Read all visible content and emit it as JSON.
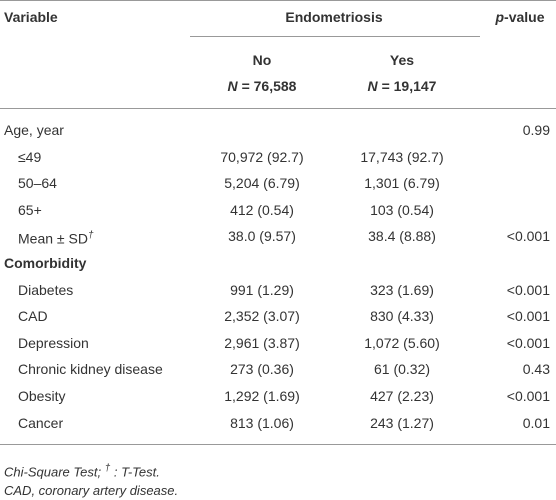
{
  "header": {
    "variable": "Variable",
    "group": "Endometriosis",
    "p_value": {
      "symbol": "p",
      "rest": "-value"
    },
    "no": {
      "label": "No",
      "n_symbol": "N",
      "n_rest": "= 76,588"
    },
    "yes": {
      "label": "Yes",
      "n_symbol": "N",
      "n_rest": "= 19,147"
    }
  },
  "sections": [
    {
      "title": "Age, year",
      "p": "0.99",
      "rows": [
        {
          "label": "≤49",
          "no": "70,972 (92.7)",
          "yes": "17,743 (92.7)"
        },
        {
          "label": "50–64",
          "no": "5,204 (6.79)",
          "yes": "1,301 (6.79)"
        },
        {
          "label": "65+",
          "no": "412 (0.54)",
          "yes": "103 (0.54)"
        },
        {
          "label": "Mean ± SD",
          "sup": "†",
          "no": "38.0 (9.57)",
          "yes": "38.4 (8.88)",
          "p": "<0.001"
        }
      ]
    },
    {
      "title": "Comorbidity",
      "rows": [
        {
          "label": "Diabetes",
          "no": "991 (1.29)",
          "yes": "323 (1.69)",
          "p": "<0.001"
        },
        {
          "label": "CAD",
          "no": "2,352 (3.07)",
          "yes": "830 (4.33)",
          "p": "<0.001"
        },
        {
          "label": "Depression",
          "no": "2,961 (3.87)",
          "yes": "1,072 (5.60)",
          "p": "<0.001"
        },
        {
          "label": "Chronic kidney disease",
          "no": "273 (0.36)",
          "yes": "61 (0.32)",
          "p": "0.43"
        },
        {
          "label": "Obesity",
          "no": "1,292 (1.69)",
          "yes": "427 (2.23)",
          "p": "<0.001"
        },
        {
          "label": "Cancer",
          "no": "813 (1.06)",
          "yes": "243 (1.27)",
          "p": "0.01"
        }
      ]
    }
  ],
  "footnotes": {
    "line1": {
      "a": "Chi-Square Test; ",
      "dagger": "†",
      "b": " : T-Test."
    },
    "line2": "CAD, coronary artery disease."
  }
}
